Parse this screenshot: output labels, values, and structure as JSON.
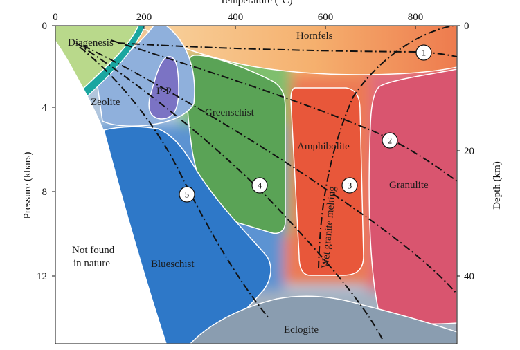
{
  "axes": {
    "top_title": "Temperature (°C)",
    "left_title": "Pressure (kbars)",
    "right_title": "Depth (km)",
    "top_ticks": [
      "0",
      "200",
      "400",
      "600",
      "800"
    ],
    "left_ticks": [
      "0",
      "4",
      "8",
      "12"
    ],
    "right_ticks": [
      "0",
      "20",
      "40"
    ]
  },
  "facies": {
    "diagenesis": "Diagenesis",
    "hornfels": "Hornfels",
    "zeolite": "Zeolite",
    "pp": "P-P",
    "greenschist": "Greenschist",
    "amphibolite": "Amphibolite",
    "granulite": "Granulite",
    "blueschist": "Blueschist",
    "eclogite": "Eclogite",
    "not_found_1": "Not found",
    "not_found_2": "in nature"
  },
  "curve_labels": {
    "wet_granite": "Wet granite melting"
  },
  "markers": [
    "1",
    "2",
    "3",
    "4",
    "5"
  ],
  "colors": {
    "diagenesis": "#b9d98b",
    "zeolite_band": "#1aa6a0",
    "zeolite": "#8fb0dc",
    "pp": "#7b73c4",
    "greenschist": "#5aa356",
    "amphibolite": "#e8583a",
    "granulite": "#d95570",
    "blueschist": "#2e78c8",
    "eclogite": "#8a9db0",
    "hornfels": "#f5b877"
  }
}
